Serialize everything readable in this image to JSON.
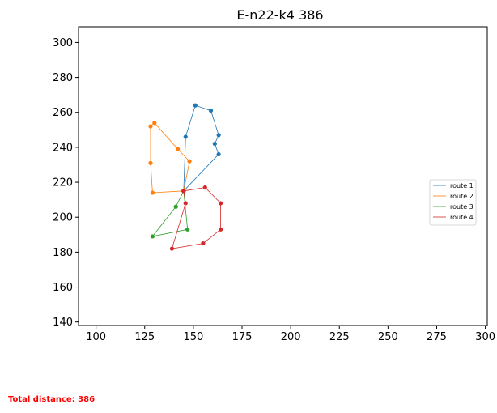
{
  "chart_data": {
    "type": "line",
    "title": "E-n22-k4 386",
    "xlim": [
      91,
      301
    ],
    "ylim": [
      138,
      309
    ],
    "xticks": [
      100,
      125,
      150,
      175,
      200,
      225,
      250,
      275,
      300
    ],
    "yticks": [
      140,
      160,
      180,
      200,
      220,
      240,
      260,
      280,
      300
    ],
    "grid": false,
    "legend_position": "center-right",
    "depot": [
      145,
      215
    ],
    "series": [
      {
        "name": "route 1",
        "color": "#1f77b4",
        "points": [
          [
            145,
            215
          ],
          [
            163,
            236
          ],
          [
            161,
            242
          ],
          [
            163,
            247
          ],
          [
            159,
            261
          ],
          [
            151,
            264
          ],
          [
            146,
            246
          ],
          [
            145,
            215
          ]
        ]
      },
      {
        "name": "route 2",
        "color": "#ff7f0e",
        "points": [
          [
            145,
            215
          ],
          [
            129,
            214
          ],
          [
            128,
            231
          ],
          [
            128,
            252
          ],
          [
            130,
            254
          ],
          [
            142,
            239
          ],
          [
            148,
            232
          ],
          [
            145,
            215
          ]
        ]
      },
      {
        "name": "route 3",
        "color": "#2ca02c",
        "points": [
          [
            145,
            215
          ],
          [
            141,
            206
          ],
          [
            129,
            189
          ],
          [
            147,
            193
          ],
          [
            145,
            215
          ]
        ]
      },
      {
        "name": "route 4",
        "color": "#d62728",
        "points": [
          [
            145,
            215
          ],
          [
            156,
            217
          ],
          [
            164,
            208
          ],
          [
            164,
            193
          ],
          [
            155,
            185
          ],
          [
            139,
            182
          ],
          [
            146,
            208
          ],
          [
            145,
            215
          ]
        ]
      }
    ]
  },
  "footer": {
    "total_text": "Total distance: 386",
    "total_color": "#ff0000"
  }
}
